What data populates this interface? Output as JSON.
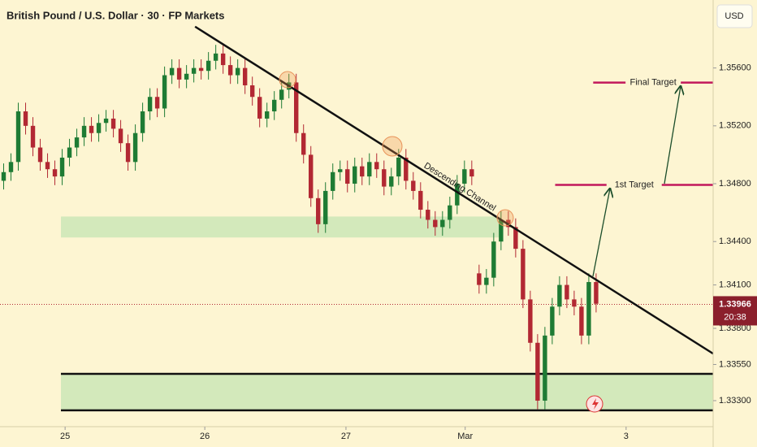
{
  "chart_data": {
    "type": "candlestick",
    "title": "British Pound / U.S. Dollar · 30 · FP Markets",
    "currency": "USD",
    "up_color": "#1e7b34",
    "down_color": "#b22833",
    "xlim": [
      0,
      97.5
    ],
    "ylim": [
      1.3312,
      1.3607
    ],
    "xticks": [
      {
        "value": 8.9,
        "label": "25"
      },
      {
        "value": 28,
        "label": "26"
      },
      {
        "value": 47.3,
        "label": "27"
      },
      {
        "value": 63.6,
        "label": "Mar"
      },
      {
        "value": 85.6,
        "label": "3"
      }
    ],
    "yticks": [
      {
        "value": 1.333,
        "label": "1.33300"
      },
      {
        "value": 1.3355,
        "label": "1.33550"
      },
      {
        "value": 1.338,
        "label": "1.33800"
      },
      {
        "value": 1.341,
        "label": "1.34100"
      },
      {
        "value": 1.344,
        "label": "1.34400"
      },
      {
        "value": 1.348,
        "label": "1.34800"
      },
      {
        "value": 1.352,
        "label": "1.35200"
      },
      {
        "value": 1.356,
        "label": "1.35600"
      }
    ],
    "last_price": {
      "value": 1.33966,
      "label": "1.33966",
      "timer": "20:38"
    },
    "candles": [
      [
        1.3482,
        1.3494,
        1.3476,
        1.3488
      ],
      [
        1.3488,
        1.3501,
        1.3482,
        1.3495
      ],
      [
        1.3495,
        1.3536,
        1.3489,
        1.353
      ],
      [
        1.353,
        1.3536,
        1.3514,
        1.352
      ],
      [
        1.352,
        1.3526,
        1.3499,
        1.3505
      ],
      [
        1.3505,
        1.3511,
        1.3489,
        1.3495
      ],
      [
        1.3495,
        1.3501,
        1.3484,
        1.349
      ],
      [
        1.349,
        1.3496,
        1.3479,
        1.3485
      ],
      [
        1.3485,
        1.3504,
        1.3479,
        1.3498
      ],
      [
        1.3498,
        1.3511,
        1.3492,
        1.3505
      ],
      [
        1.3505,
        1.3518,
        1.3499,
        1.3512
      ],
      [
        1.3512,
        1.3526,
        1.3506,
        1.352
      ],
      [
        1.352,
        1.3526,
        1.3509,
        1.3515
      ],
      [
        1.3515,
        1.3528,
        1.3509,
        1.3522
      ],
      [
        1.3522,
        1.3531,
        1.3516,
        1.3525
      ],
      [
        1.3525,
        1.3531,
        1.3512,
        1.3518
      ],
      [
        1.3518,
        1.3524,
        1.3502,
        1.3508
      ],
      [
        1.3508,
        1.3514,
        1.3489,
        1.3495
      ],
      [
        1.3495,
        1.3521,
        1.3489,
        1.3515
      ],
      [
        1.3515,
        1.3536,
        1.3509,
        1.353
      ],
      [
        1.353,
        1.3546,
        1.3524,
        1.354
      ],
      [
        1.354,
        1.3546,
        1.3526,
        1.3532
      ],
      [
        1.3532,
        1.3561,
        1.3526,
        1.3555
      ],
      [
        1.3555,
        1.3566,
        1.3549,
        1.356
      ],
      [
        1.356,
        1.3566,
        1.3546,
        1.3552
      ],
      [
        1.3552,
        1.3562,
        1.3546,
        1.3556
      ],
      [
        1.3556,
        1.3566,
        1.355,
        1.356
      ],
      [
        1.356,
        1.3566,
        1.3552,
        1.3558
      ],
      [
        1.3558,
        1.3571,
        1.3552,
        1.3565
      ],
      [
        1.3565,
        1.3576,
        1.3559,
        1.357
      ],
      [
        1.357,
        1.3576,
        1.3556,
        1.3562
      ],
      [
        1.3562,
        1.3568,
        1.3549,
        1.3555
      ],
      [
        1.3555,
        1.3566,
        1.3549,
        1.356
      ],
      [
        1.356,
        1.3566,
        1.3542,
        1.3548
      ],
      [
        1.3548,
        1.3554,
        1.3534,
        1.354
      ],
      [
        1.354,
        1.3546,
        1.3519,
        1.3525
      ],
      [
        1.3525,
        1.3536,
        1.3519,
        1.353
      ],
      [
        1.353,
        1.3544,
        1.3524,
        1.3538
      ],
      [
        1.3538,
        1.3551,
        1.3532,
        1.3545
      ],
      [
        1.3545,
        1.3556,
        1.3539,
        1.355
      ],
      [
        1.355,
        1.3556,
        1.3509,
        1.3515
      ],
      [
        1.3515,
        1.3521,
        1.3494,
        1.35
      ],
      [
        1.35,
        1.3506,
        1.3464,
        1.347
      ],
      [
        1.347,
        1.3476,
        1.3446,
        1.3452
      ],
      [
        1.3452,
        1.3481,
        1.3446,
        1.3475
      ],
      [
        1.3475,
        1.3494,
        1.3469,
        1.3488
      ],
      [
        1.3488,
        1.3496,
        1.3482,
        1.349
      ],
      [
        1.349,
        1.3496,
        1.3474,
        1.348
      ],
      [
        1.348,
        1.3498,
        1.3474,
        1.3492
      ],
      [
        1.3492,
        1.3498,
        1.3479,
        1.3485
      ],
      [
        1.3485,
        1.3501,
        1.3479,
        1.3495
      ],
      [
        1.3495,
        1.3501,
        1.3484,
        1.349
      ],
      [
        1.349,
        1.3496,
        1.3472,
        1.3478
      ],
      [
        1.3478,
        1.3491,
        1.3472,
        1.3485
      ],
      [
        1.3485,
        1.3504,
        1.3479,
        1.3498
      ],
      [
        1.3498,
        1.3504,
        1.3476,
        1.3482
      ],
      [
        1.3482,
        1.3488,
        1.3469,
        1.3475
      ],
      [
        1.3475,
        1.3481,
        1.3456,
        1.3462
      ],
      [
        1.3462,
        1.3468,
        1.3449,
        1.3455
      ],
      [
        1.3455,
        1.3461,
        1.3444,
        1.345
      ],
      [
        1.345,
        1.3461,
        1.3444,
        1.3455
      ],
      [
        1.3455,
        1.3471,
        1.3449,
        1.3465
      ],
      [
        1.3465,
        1.3486,
        1.3459,
        1.348
      ],
      [
        1.348,
        1.3496,
        1.3474,
        1.349
      ],
      [
        1.349,
        1.3496,
        1.3479,
        1.3485
      ],
      [
        1.3418,
        1.3424,
        1.3404,
        1.341
      ],
      [
        1.341,
        1.3421,
        1.3404,
        1.3415
      ],
      [
        1.3415,
        1.3446,
        1.3409,
        1.344
      ],
      [
        1.344,
        1.3461,
        1.3434,
        1.3455
      ],
      [
        1.3455,
        1.3461,
        1.3444,
        1.345
      ],
      [
        1.345,
        1.3456,
        1.3429,
        1.3435
      ],
      [
        1.3435,
        1.3441,
        1.3394,
        1.34
      ],
      [
        1.34,
        1.3406,
        1.3364,
        1.337
      ],
      [
        1.337,
        1.3376,
        1.3324,
        1.333
      ],
      [
        1.333,
        1.3381,
        1.3324,
        1.3375
      ],
      [
        1.3375,
        1.3401,
        1.3369,
        1.3395
      ],
      [
        1.3395,
        1.3416,
        1.3389,
        1.341
      ],
      [
        1.341,
        1.3416,
        1.3394,
        1.34
      ],
      [
        1.34,
        1.3406,
        1.3389,
        1.3395
      ],
      [
        1.3395,
        1.3401,
        1.3369,
        1.3375
      ],
      [
        1.3375,
        1.3418,
        1.3369,
        1.3412
      ],
      [
        1.3412,
        1.3418,
        1.3391,
        1.3397
      ]
    ],
    "trendline": {
      "label": "Descending Channel",
      "points": [
        [
          26.67,
          1.35886
        ],
        [
          97.5,
          1.33625
        ]
      ]
    },
    "zones": [
      {
        "x": [
          8.33,
          68.3
        ],
        "y": [
          1.34428,
          1.34573
        ]
      },
      {
        "x": [
          8.33,
          97.5
        ],
        "y": [
          1.33233,
          1.33485
        ]
      }
    ],
    "targets": [
      {
        "label": "1st Target",
        "value": 1.34792,
        "x": [
          75.9,
          97.5
        ]
      },
      {
        "label": "Final Target",
        "value": 1.35499,
        "x": [
          81.1,
          97.5
        ]
      }
    ]
  }
}
